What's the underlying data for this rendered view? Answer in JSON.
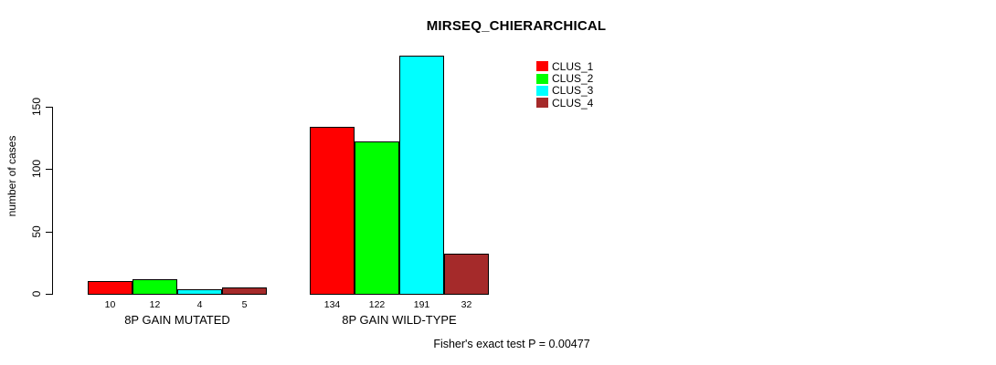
{
  "chart_data": {
    "type": "bar",
    "title": "MIRSEQ_CHIERARCHICAL",
    "ylabel": "number of cases",
    "xlabel": "",
    "ylim": [
      0,
      150
    ],
    "yticks": [
      0,
      50,
      100,
      150
    ],
    "grid": false,
    "legend_position": "top-right",
    "categories": [
      "8P GAIN MUTATED",
      "8P GAIN WILD-TYPE"
    ],
    "series": [
      {
        "name": "CLUS_1",
        "color": "#ff0000",
        "values": [
          10,
          134
        ]
      },
      {
        "name": "CLUS_2",
        "color": "#00ff00",
        "values": [
          12,
          122
        ]
      },
      {
        "name": "CLUS_3",
        "color": "#00ffff",
        "values": [
          4,
          191
        ]
      },
      {
        "name": "CLUS_4",
        "color": "#a52a2a",
        "values": [
          5,
          32
        ]
      }
    ],
    "bar_value_labels": [
      [
        10,
        12,
        4,
        5
      ],
      [
        134,
        122,
        191,
        32
      ]
    ],
    "annotation": "Fisher's exact test P = 0.00477"
  }
}
